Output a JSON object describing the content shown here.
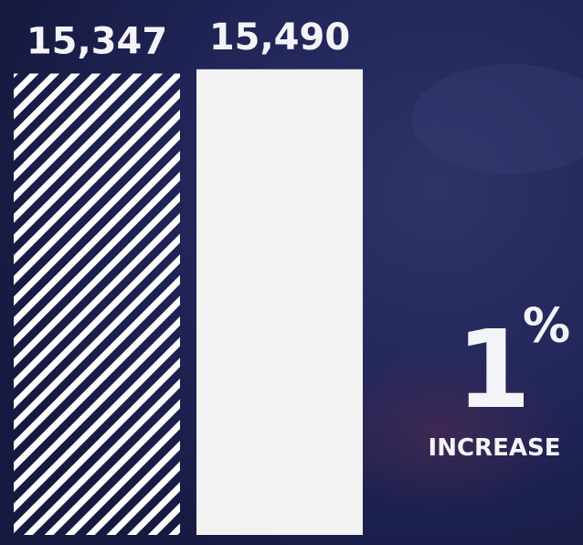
{
  "chart_data": {
    "type": "bar",
    "values": [
      15347,
      15490
    ],
    "value_labels": [
      "15,347",
      "15,490"
    ],
    "colors": [
      "#ffffff",
      "#f2f2f2"
    ],
    "hatch": [
      true,
      false
    ],
    "ylim": [
      0,
      16000
    ],
    "annotation": {
      "value": 1,
      "suffix": "%",
      "text": "INCREASE"
    }
  }
}
